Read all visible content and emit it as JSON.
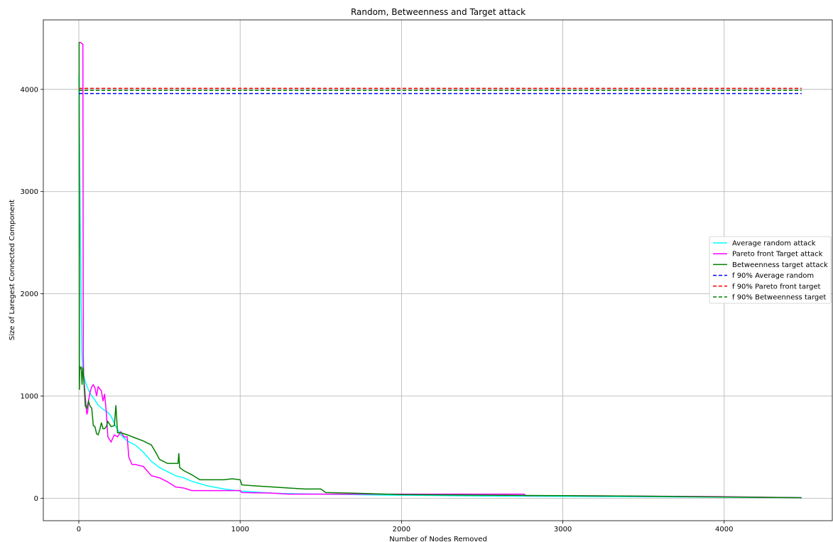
{
  "chart_data": {
    "type": "line",
    "title": "Random, Betweenness and Target attack",
    "xlabel": "Number of Nodes Removed",
    "ylabel": "Size of Laregest Connected Component",
    "xlim": [
      -220,
      4670
    ],
    "ylim": [
      -220,
      4680
    ],
    "xticks": [
      0,
      1000,
      2000,
      3000,
      4000
    ],
    "yticks": [
      0,
      1000,
      2000,
      3000,
      4000
    ],
    "grid": true,
    "legend_position": "center-right",
    "series": [
      {
        "name": "Average random attack",
        "color": "#00ffff",
        "style": "solid",
        "x": [
          0,
          5,
          10,
          15,
          20,
          25,
          30,
          40,
          50,
          60,
          80,
          100,
          120,
          150,
          180,
          200,
          230,
          260,
          300,
          350,
          400,
          450,
          500,
          550,
          600,
          650,
          700,
          800,
          900,
          1000,
          1100,
          1200,
          1300,
          1500,
          1700,
          1900,
          2100,
          2500,
          3000,
          3500,
          4000,
          4480
        ],
        "values": [
          4130,
          3400,
          2530,
          1860,
          1390,
          1250,
          1200,
          1140,
          1100,
          1060,
          1000,
          960,
          910,
          870,
          840,
          800,
          700,
          620,
          560,
          520,
          450,
          360,
          300,
          260,
          220,
          200,
          165,
          120,
          90,
          70,
          60,
          50,
          45,
          40,
          35,
          30,
          28,
          22,
          18,
          14,
          10,
          5
        ]
      },
      {
        "name": "Pareto front Target attack",
        "color": "#ff00ff",
        "style": "solid",
        "x": [
          0,
          2,
          5,
          10,
          25,
          28,
          30,
          35,
          40,
          45,
          50,
          55,
          60,
          70,
          80,
          90,
          100,
          110,
          120,
          130,
          140,
          150,
          160,
          170,
          180,
          200,
          220,
          240,
          260,
          280,
          300,
          310,
          330,
          350,
          400,
          450,
          500,
          550,
          600,
          650,
          700,
          750,
          1000,
          1010,
          1200,
          1300,
          1400,
          1700,
          1900,
          2000,
          2300,
          2760,
          2770,
          3000,
          3500,
          4000,
          4480
        ],
        "values": [
          4460,
          4460,
          4460,
          4460,
          4440,
          1400,
          1200,
          1100,
          1000,
          900,
          820,
          850,
          950,
          1040,
          1090,
          1110,
          1080,
          1000,
          1090,
          1070,
          1050,
          950,
          1020,
          850,
          600,
          550,
          620,
          600,
          650,
          600,
          600,
          400,
          330,
          330,
          310,
          220,
          200,
          160,
          110,
          100,
          75,
          75,
          75,
          55,
          50,
          40,
          40,
          40,
          40,
          40,
          40,
          40,
          25,
          25,
          20,
          15,
          5
        ]
      },
      {
        "name": "Betweenness target attack",
        "color": "#008000",
        "style": "solid",
        "x": [
          0,
          2,
          4,
          6,
          10,
          15,
          20,
          25,
          30,
          40,
          50,
          60,
          70,
          80,
          90,
          100,
          110,
          120,
          130,
          140,
          150,
          160,
          170,
          180,
          200,
          220,
          230,
          240,
          260,
          300,
          350,
          400,
          450,
          480,
          500,
          550,
          600,
          615,
          620,
          625,
          650,
          700,
          750,
          800,
          900,
          950,
          1000,
          1010,
          1100,
          1200,
          1300,
          1400,
          1500,
          1530,
          1700,
          1900,
          2000,
          2500,
          3000,
          3500,
          4000,
          4480
        ],
        "values": [
          4460,
          4460,
          1060,
          1290,
          1270,
          1280,
          1110,
          1280,
          1180,
          900,
          880,
          950,
          900,
          880,
          710,
          700,
          630,
          620,
          670,
          740,
          680,
          680,
          700,
          750,
          700,
          710,
          910,
          640,
          640,
          620,
          590,
          560,
          520,
          440,
          380,
          340,
          340,
          340,
          440,
          300,
          270,
          230,
          180,
          180,
          180,
          190,
          180,
          130,
          120,
          110,
          100,
          90,
          90,
          55,
          50,
          40,
          35,
          30,
          25,
          20,
          12,
          5
        ]
      },
      {
        "name": "f 90% Average random",
        "color": "#0000ff",
        "style": "dashed",
        "x": [
          0,
          4480
        ],
        "values": [
          3960,
          3960
        ]
      },
      {
        "name": "f 90% Pareto front target",
        "color": "#ff0000",
        "style": "dashed",
        "x": [
          0,
          4480
        ],
        "values": [
          4010,
          4010
        ]
      },
      {
        "name": "f 90% Betweenness target",
        "color": "#008000",
        "style": "dashed",
        "x": [
          0,
          4480
        ],
        "values": [
          3990,
          3990
        ]
      }
    ]
  }
}
